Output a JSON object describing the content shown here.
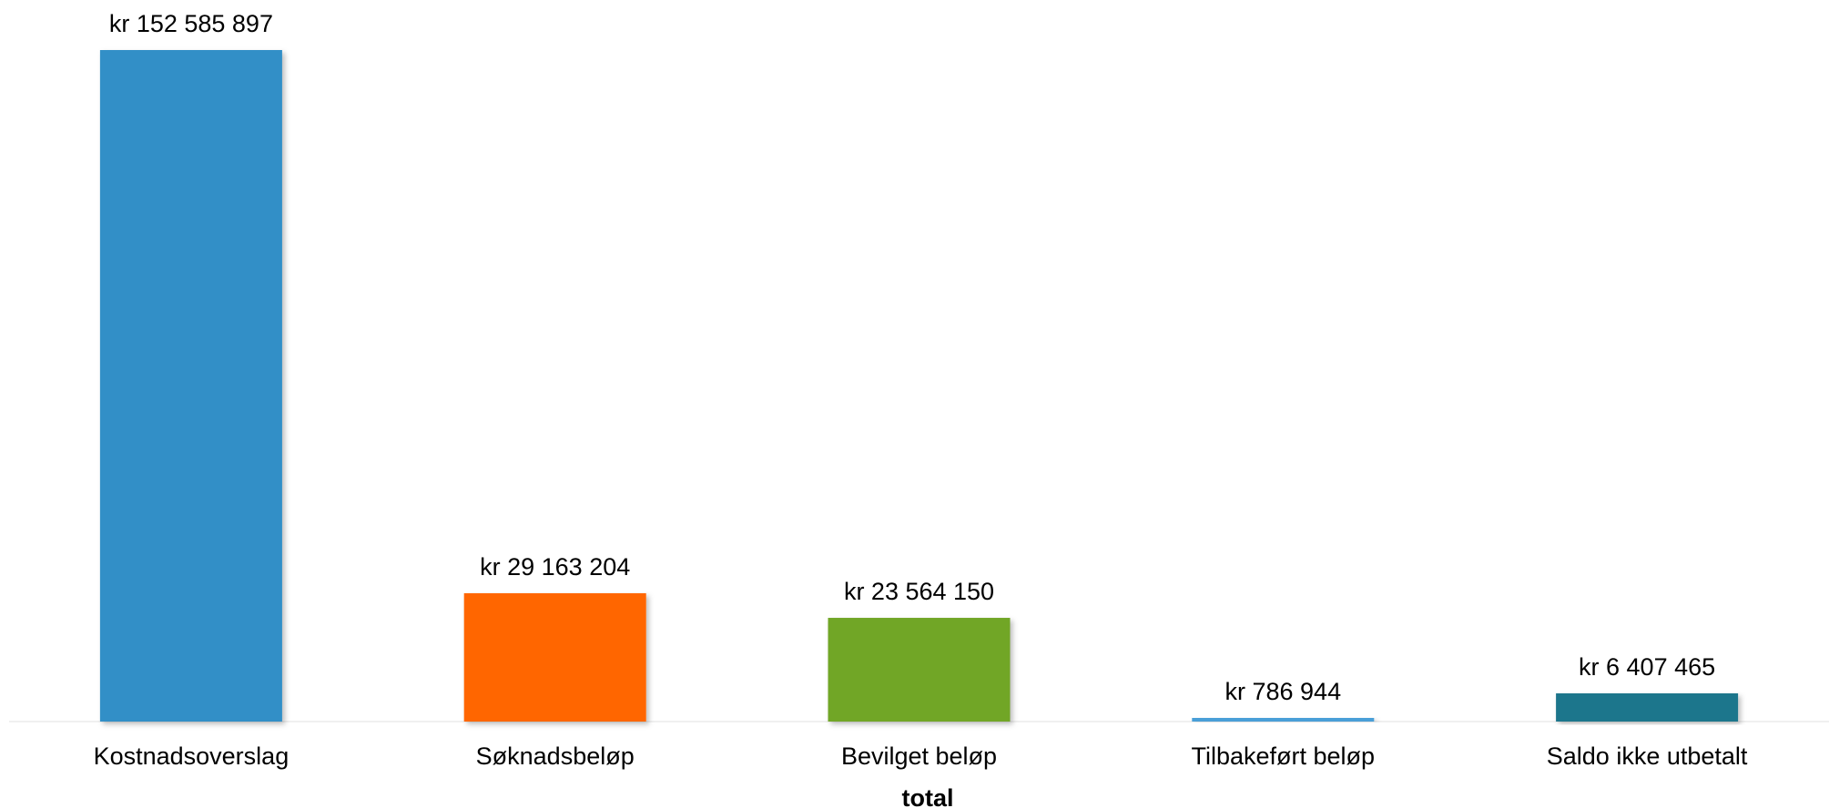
{
  "chart_data": {
    "type": "bar",
    "title": "",
    "xlabel": "total",
    "ylabel": "",
    "ylim": [
      0,
      152585897
    ],
    "grid": false,
    "legend": "none",
    "currency_prefix": "kr",
    "categories": [
      "Kostnadsoverslag",
      "Søknadsbeløp",
      "Bevilget beløp",
      "Tilbakeført beløp",
      "Saldo ikke utbetalt"
    ],
    "values": [
      152585897,
      29163204,
      23564150,
      786944,
      6407465
    ],
    "data_labels": [
      "kr 152 585 897",
      "kr 29 163 204",
      "kr 23 564 150",
      "kr 786 944",
      "kr 6 407 465"
    ],
    "colors": [
      "#318FC7",
      "#FF6600",
      "#71A628",
      "#4A9FD8",
      "#1F768C"
    ]
  }
}
